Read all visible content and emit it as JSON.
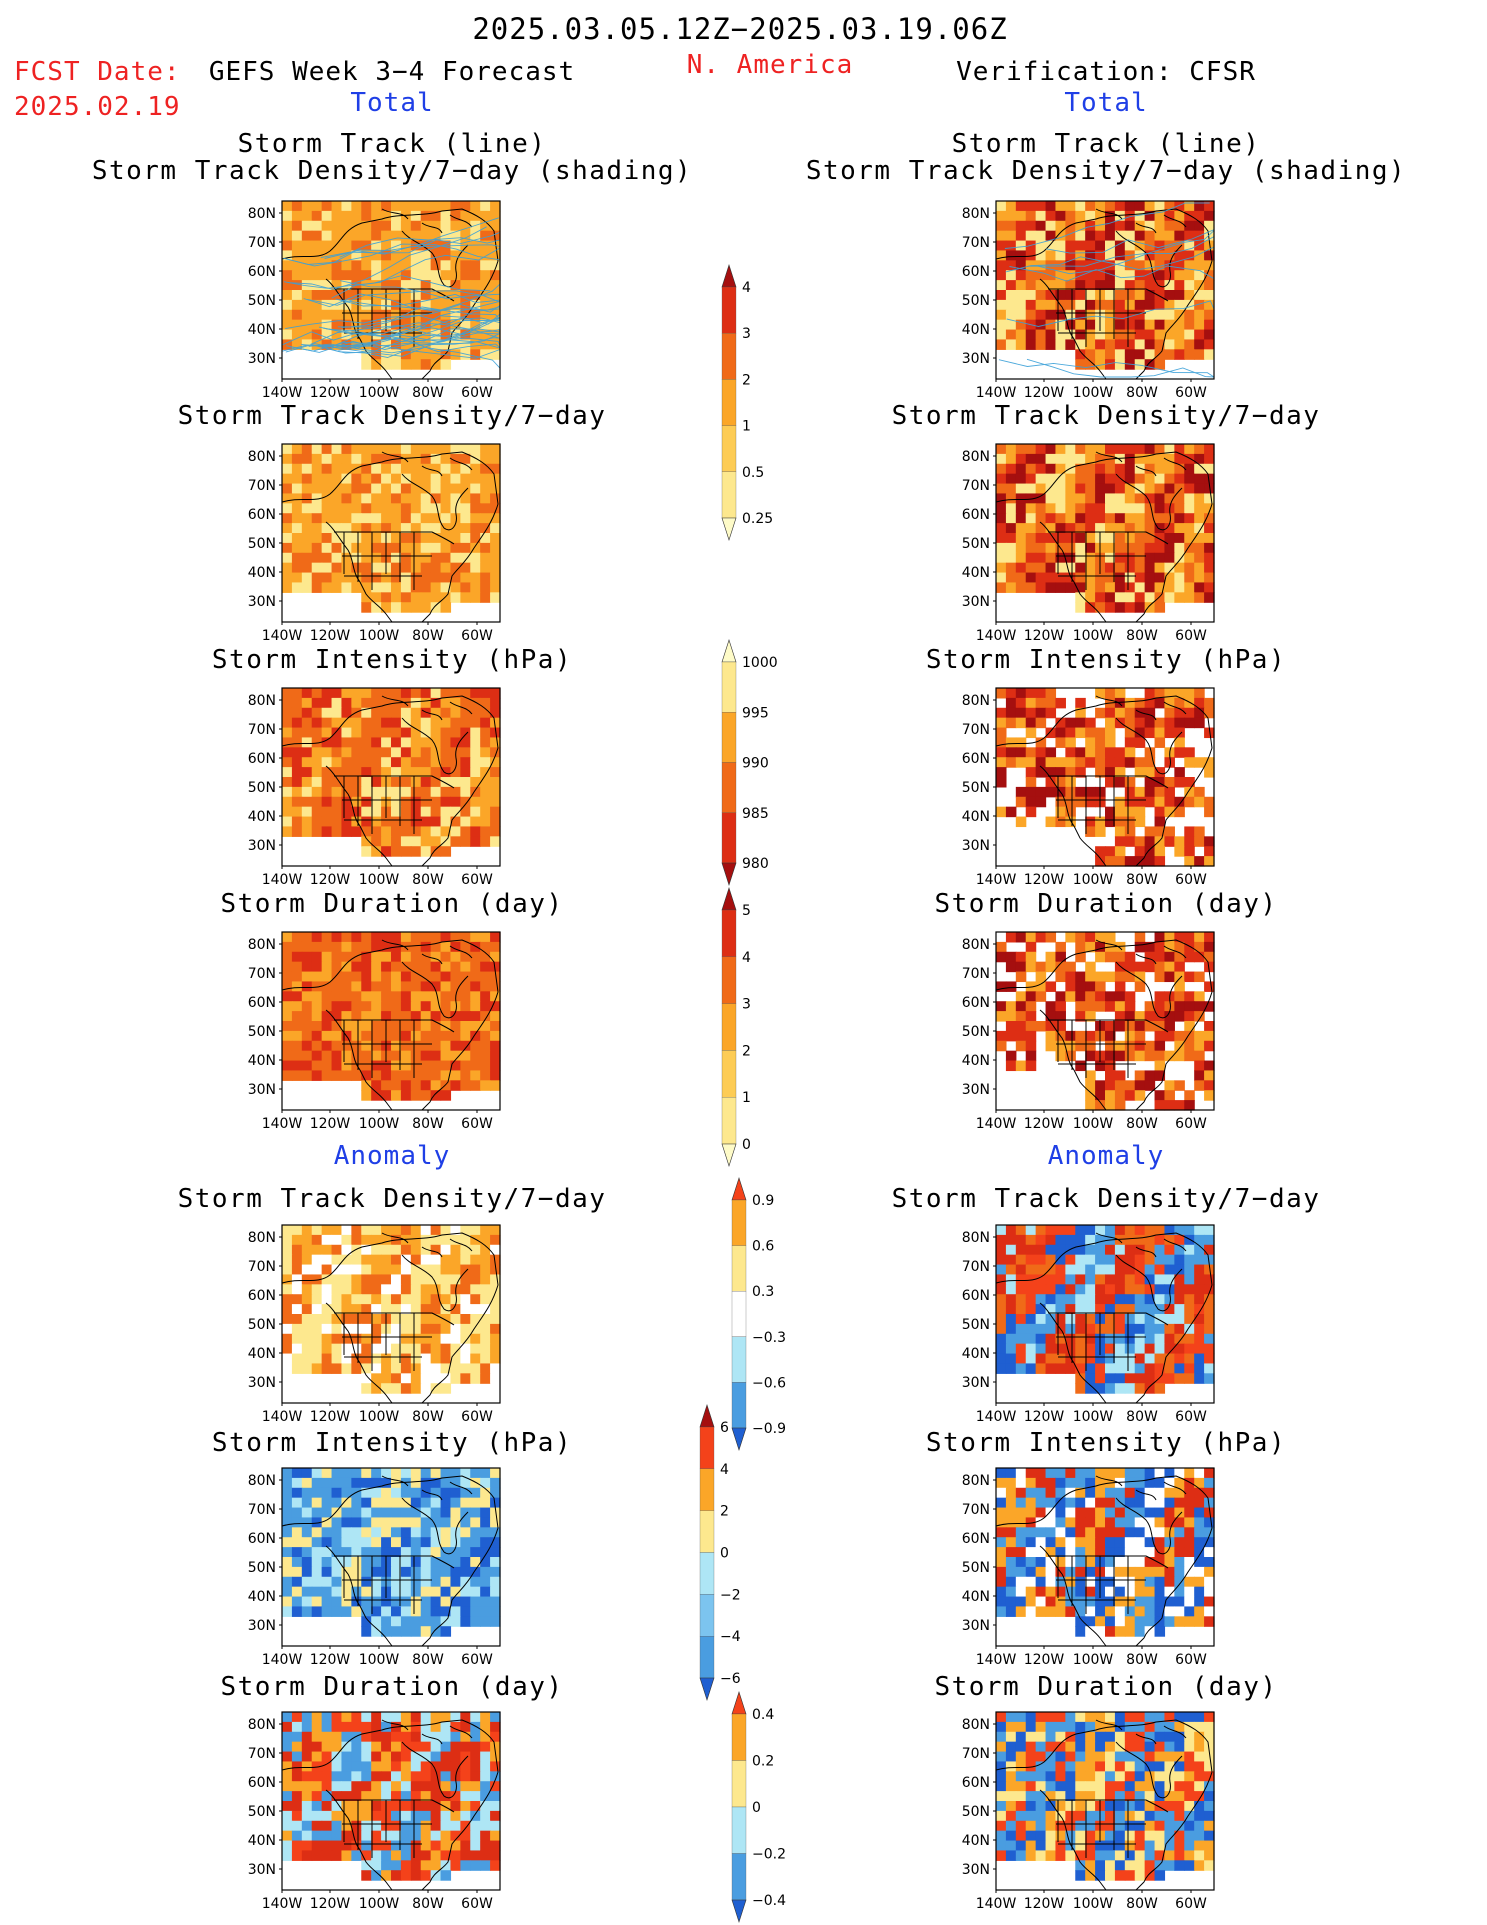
{
  "header": {
    "period": "2025.03.05.12Z−2025.03.19.06Z",
    "fcst_label": "FCST Date:",
    "fcst_date": "2025.02.19",
    "model": "GEFS Week 3−4 Forecast",
    "region": "N. America",
    "verification": "Verification: CFSR"
  },
  "sections": {
    "total_left": "Total",
    "total_right": "Total",
    "anomaly_left": "Anomaly",
    "anomaly_right": "Anomaly"
  },
  "titles": {
    "r1_line1": "Storm Track (line)",
    "r1_line2": "Storm Track Density/7−day (shading)",
    "r2": "Storm Track Density/7−day",
    "r3": "Storm Intensity (hPa)",
    "r4": "Storm Duration (day)",
    "r5": "Storm Track Density/7−day",
    "r6": "Storm Intensity (hPa)",
    "r7": "Storm Duration (day)"
  },
  "axes": {
    "lat_labels": [
      "80N",
      "70N",
      "60N",
      "50N",
      "40N",
      "30N"
    ],
    "lon_labels": [
      "140W",
      "120W",
      "100W",
      "80W",
      "60W"
    ]
  },
  "colorbars": [
    {
      "id": "density",
      "labels": [
        "4",
        "3",
        "2",
        "1",
        "0.5",
        "0.25"
      ],
      "colors": [
        "#a50f0f",
        "#dd2e14",
        "#f06a18",
        "#fba628",
        "#fdcc55",
        "#fde88e",
        "#fefbc8"
      ]
    },
    {
      "id": "intensity",
      "labels": [
        "1000",
        "995",
        "990",
        "985",
        "980"
      ],
      "colors": [
        "#fefbc8",
        "#fde88e",
        "#fba628",
        "#f06a18",
        "#dd2e14",
        "#a50f0f"
      ]
    },
    {
      "id": "duration",
      "labels": [
        "5",
        "4",
        "3",
        "2",
        "1",
        "0"
      ],
      "colors": [
        "#a50f0f",
        "#dd2e14",
        "#f06a18",
        "#fba628",
        "#fdcc55",
        "#fde88e",
        "#fefbc8"
      ]
    },
    {
      "id": "density_anom",
      "labels": [
        "0.9",
        "0.6",
        "0.3",
        "−0.3",
        "−0.6",
        "−0.9"
      ],
      "colors": [
        "#f4421a",
        "#fba628",
        "#fde88e",
        "#ffffff",
        "#aee6f5",
        "#4a9de0",
        "#1f5fd1"
      ]
    },
    {
      "id": "intensity_anom",
      "labels": [
        "6",
        "4",
        "2",
        "0",
        "−2",
        "−4",
        "−6"
      ],
      "colors": [
        "#a50f0f",
        "#f4421a",
        "#fba628",
        "#fde88e",
        "#aee6f5",
        "#7cc4ef",
        "#4a9de0",
        "#1f5fd1"
      ]
    },
    {
      "id": "duration_anom",
      "labels": [
        "0.4",
        "0.2",
        "0",
        "−0.2",
        "−0.4"
      ],
      "colors": [
        "#f4421a",
        "#fba628",
        "#fde88e",
        "#aee6f5",
        "#4a9de0",
        "#1f5fd1"
      ]
    }
  ],
  "colors": {
    "dark_red": "#a50f0f",
    "red": "#dd2e14",
    "orange": "#f06a18",
    "light_orange": "#fba628",
    "yellow": "#fde88e",
    "light_blue": "#aee6f5",
    "blue": "#4a9de0",
    "dark_blue": "#1f5fd1",
    "track_line": "#3aa0d8"
  }
}
